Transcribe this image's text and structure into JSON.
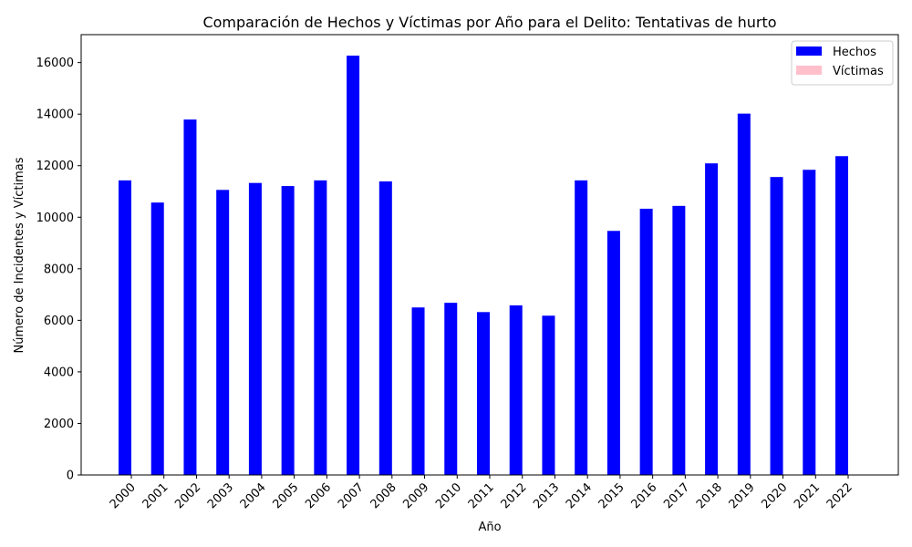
{
  "chart_data": {
    "type": "bar",
    "title": "Comparación de Hechos y Víctimas por Año para el Delito: Tentativas de hurto",
    "xlabel": "Año",
    "ylabel": "Número de Incidentes y Víctimas",
    "categories": [
      "2000",
      "2001",
      "2002",
      "2003",
      "2004",
      "2005",
      "2006",
      "2007",
      "2008",
      "2009",
      "2010",
      "2011",
      "2012",
      "2013",
      "2014",
      "2015",
      "2016",
      "2017",
      "2018",
      "2019",
      "2020",
      "2021",
      "2022"
    ],
    "series": [
      {
        "name": "Hechos",
        "color": "#0000ff",
        "values": [
          11430,
          10570,
          13790,
          11060,
          11330,
          11210,
          11430,
          16270,
          11390,
          6500,
          6680,
          6320,
          6580,
          6180,
          11430,
          9470,
          10330,
          10440,
          12090,
          14020,
          11560,
          11840,
          12370
        ]
      },
      {
        "name": "Víctimas",
        "color": "#ffc0cb",
        "values": [
          0,
          0,
          0,
          0,
          0,
          0,
          0,
          0,
          0,
          0,
          0,
          0,
          0,
          0,
          0,
          0,
          0,
          0,
          0,
          0,
          0,
          0,
          0
        ]
      }
    ],
    "yticks": [
      0,
      2000,
      4000,
      6000,
      8000,
      10000,
      12000,
      14000,
      16000
    ],
    "ylim": [
      0,
      17084
    ],
    "grid": false,
    "legend_position": "top-right"
  }
}
